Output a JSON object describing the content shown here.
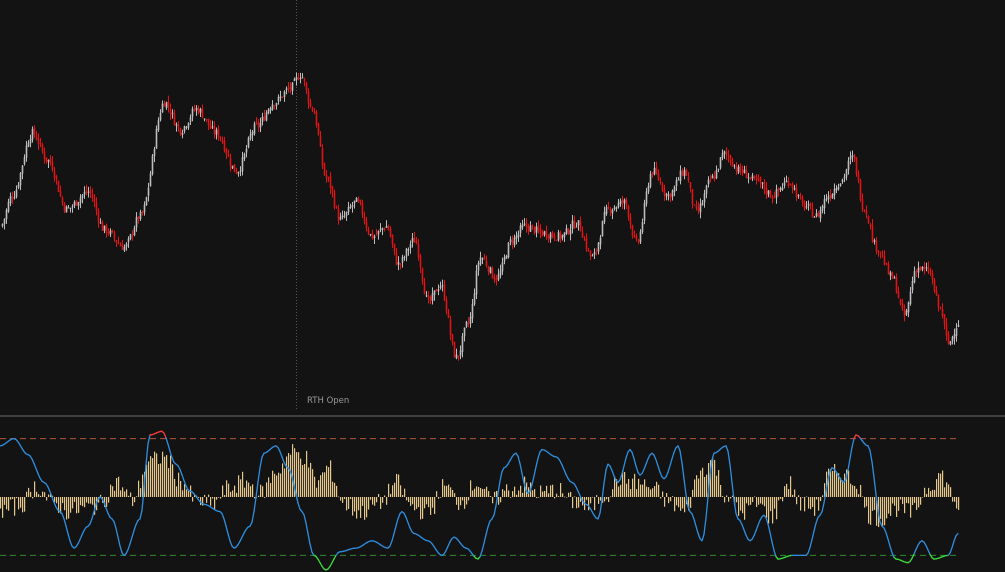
{
  "chart_data": [
    {
      "type": "candlestick",
      "panel": "price",
      "annotations": [
        {
          "label": "RTH Open",
          "at_bar": 148
        }
      ],
      "colors": {
        "up": "#bdbdbd",
        "down": "#e01414",
        "background": "#131313",
        "session_line": "#555555"
      },
      "ylim": [
        0,
        100
      ],
      "close_anchors": [
        [
          0,
          46
        ],
        [
          6,
          55
        ],
        [
          16,
          73
        ],
        [
          24,
          65
        ],
        [
          33,
          51
        ],
        [
          44,
          56
        ],
        [
          52,
          45
        ],
        [
          62,
          40
        ],
        [
          70,
          49
        ],
        [
          82,
          82
        ],
        [
          90,
          74
        ],
        [
          98,
          80
        ],
        [
          108,
          73
        ],
        [
          118,
          62
        ],
        [
          128,
          75
        ],
        [
          137,
          82
        ],
        [
          145,
          86
        ],
        [
          150,
          90
        ],
        [
          156,
          80
        ],
        [
          163,
          60
        ],
        [
          170,
          48
        ],
        [
          178,
          53
        ],
        [
          186,
          43
        ],
        [
          193,
          46
        ],
        [
          199,
          35
        ],
        [
          207,
          42
        ],
        [
          214,
          24
        ],
        [
          220,
          29
        ],
        [
          228,
          8
        ],
        [
          234,
          18
        ],
        [
          240,
          37
        ],
        [
          248,
          31
        ],
        [
          256,
          42
        ],
        [
          262,
          46
        ],
        [
          272,
          44
        ],
        [
          280,
          43
        ],
        [
          288,
          47
        ],
        [
          296,
          37
        ],
        [
          304,
          51
        ],
        [
          312,
          53
        ],
        [
          318,
          41
        ],
        [
          326,
          62
        ],
        [
          334,
          55
        ],
        [
          342,
          62
        ],
        [
          348,
          50
        ],
        [
          356,
          60
        ],
        [
          362,
          67
        ],
        [
          370,
          62
        ],
        [
          378,
          59
        ],
        [
          386,
          55
        ],
        [
          394,
          59
        ],
        [
          402,
          52
        ],
        [
          408,
          49
        ],
        [
          414,
          55
        ],
        [
          420,
          59
        ],
        [
          426,
          66
        ],
        [
          432,
          51
        ],
        [
          438,
          40
        ],
        [
          446,
          31
        ],
        [
          452,
          20
        ],
        [
          458,
          34
        ],
        [
          464,
          33
        ],
        [
          470,
          22
        ],
        [
          474,
          12
        ],
        [
          479,
          18
        ]
      ]
    },
    {
      "type": "oscillator",
      "panel": "lower",
      "ylim": [
        -100,
        100
      ],
      "upper_band": 80,
      "lower_band": -80,
      "colors": {
        "line": "#2e8fe0",
        "overbought": "#ff3a3a",
        "oversold": "#3ddc3d",
        "histogram": "#e6c88c",
        "upper_band": "#b5543c",
        "lower_band": "#2e8a2e"
      },
      "line_anchors": [
        [
          0,
          70
        ],
        [
          7,
          80
        ],
        [
          14,
          58
        ],
        [
          22,
          20
        ],
        [
          30,
          -20
        ],
        [
          37,
          -70
        ],
        [
          44,
          -40
        ],
        [
          50,
          0
        ],
        [
          56,
          -30
        ],
        [
          62,
          -80
        ],
        [
          70,
          -30
        ],
        [
          75,
          85
        ],
        [
          81,
          90
        ],
        [
          88,
          45
        ],
        [
          95,
          8
        ],
        [
          102,
          -10
        ],
        [
          110,
          -20
        ],
        [
          117,
          -70
        ],
        [
          125,
          -40
        ],
        [
          132,
          60
        ],
        [
          138,
          70
        ],
        [
          144,
          40
        ],
        [
          151,
          -20
        ],
        [
          157,
          -80
        ],
        [
          163,
          -100
        ],
        [
          170,
          -75
        ],
        [
          178,
          -70
        ],
        [
          186,
          -60
        ],
        [
          194,
          -70
        ],
        [
          201,
          -20
        ],
        [
          207,
          -50
        ],
        [
          214,
          -60
        ],
        [
          221,
          -80
        ],
        [
          227,
          -55
        ],
        [
          233,
          -70
        ],
        [
          239,
          -85
        ],
        [
          246,
          -30
        ],
        [
          252,
          40
        ],
        [
          258,
          60
        ],
        [
          264,
          5
        ],
        [
          271,
          65
        ],
        [
          278,
          55
        ],
        [
          286,
          20
        ],
        [
          293,
          -10
        ],
        [
          299,
          -30
        ],
        [
          304,
          45
        ],
        [
          309,
          20
        ],
        [
          315,
          65
        ],
        [
          320,
          30
        ],
        [
          326,
          60
        ],
        [
          332,
          25
        ],
        [
          339,
          70
        ],
        [
          345,
          -20
        ],
        [
          351,
          -60
        ],
        [
          357,
          60
        ],
        [
          363,
          70
        ],
        [
          369,
          -30
        ],
        [
          375,
          -60
        ],
        [
          382,
          -25
        ],
        [
          389,
          -85
        ],
        [
          396,
          -80
        ],
        [
          403,
          -80
        ],
        [
          410,
          -25
        ],
        [
          416,
          40
        ],
        [
          422,
          20
        ],
        [
          428,
          85
        ],
        [
          434,
          70
        ],
        [
          441,
          -40
        ],
        [
          448,
          -85
        ],
        [
          454,
          -90
        ],
        [
          461,
          -60
        ],
        [
          467,
          -85
        ],
        [
          474,
          -80
        ],
        [
          479,
          -50
        ]
      ],
      "histogram_anchors": [
        [
          0,
          -20
        ],
        [
          10,
          -12
        ],
        [
          18,
          15
        ],
        [
          26,
          -8
        ],
        [
          34,
          -20
        ],
        [
          44,
          -15
        ],
        [
          50,
          -10
        ],
        [
          58,
          20
        ],
        [
          66,
          -5
        ],
        [
          74,
          48
        ],
        [
          82,
          55
        ],
        [
          90,
          22
        ],
        [
          98,
          -6
        ],
        [
          106,
          -10
        ],
        [
          114,
          12
        ],
        [
          122,
          22
        ],
        [
          130,
          5
        ],
        [
          138,
          35
        ],
        [
          146,
          62
        ],
        [
          152,
          55
        ],
        [
          158,
          20
        ],
        [
          164,
          40
        ],
        [
          172,
          -10
        ],
        [
          180,
          -22
        ],
        [
          190,
          -8
        ],
        [
          198,
          20
        ],
        [
          206,
          -15
        ],
        [
          214,
          -22
        ],
        [
          222,
          15
        ],
        [
          230,
          -8
        ],
        [
          238,
          20
        ],
        [
          246,
          -6
        ],
        [
          254,
          10
        ],
        [
          262,
          16
        ],
        [
          270,
          5
        ],
        [
          278,
          10
        ],
        [
          286,
          -6
        ],
        [
          294,
          -15
        ],
        [
          302,
          2
        ],
        [
          310,
          25
        ],
        [
          318,
          20
        ],
        [
          326,
          12
        ],
        [
          334,
          -6
        ],
        [
          342,
          -22
        ],
        [
          350,
          35
        ],
        [
          356,
          50
        ],
        [
          362,
          5
        ],
        [
          370,
          -22
        ],
        [
          378,
          -10
        ],
        [
          386,
          -28
        ],
        [
          394,
          20
        ],
        [
          400,
          -10
        ],
        [
          408,
          -15
        ],
        [
          414,
          30
        ],
        [
          420,
          35
        ],
        [
          428,
          20
        ],
        [
          434,
          -25
        ],
        [
          440,
          -30
        ],
        [
          448,
          -15
        ],
        [
          456,
          -22
        ],
        [
          464,
          15
        ],
        [
          470,
          30
        ],
        [
          479,
          -12
        ]
      ]
    }
  ]
}
